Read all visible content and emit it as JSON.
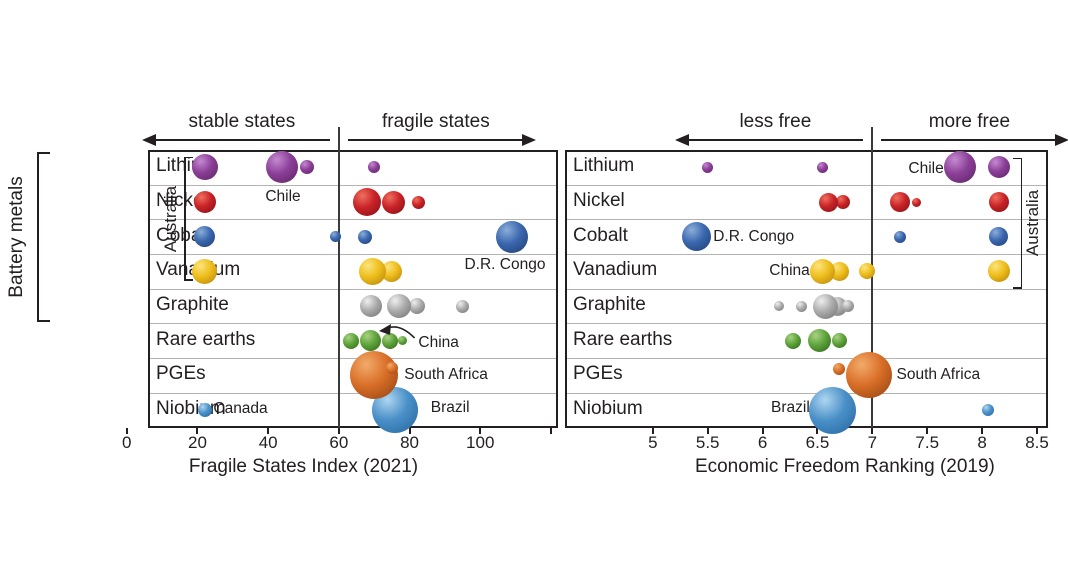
{
  "figure": {
    "group_label": "Battery metals",
    "categories": [
      "Lithium",
      "Nickel",
      "Cobalt",
      "Vanadium",
      "Graphite",
      "Rare earths",
      "PGEs",
      "Niobium"
    ]
  },
  "colors": {
    "purple": "#8b3f97",
    "red": "#c92227",
    "blue": "#3a67ae",
    "yellow": "#eebd1b",
    "gray": "#ababab",
    "green": "#5da33a",
    "orange": "#d96f28",
    "lightblue": "#4a90c8",
    "grid": "#b3b3b3",
    "ink": "#231f20"
  },
  "chart_data": [
    {
      "type": "scatter",
      "variant": "bubble",
      "xlabel": "Fragile States Index (2021)",
      "xlim": [
        6,
        122
      ],
      "grid": "horizontal-rows",
      "x_ticks": [
        {
          "v": 0,
          "label": "0"
        },
        {
          "v": 20,
          "label": "20"
        },
        {
          "v": 40,
          "label": "40"
        },
        {
          "v": 60,
          "label": "60"
        },
        {
          "v": 80,
          "label": "80"
        },
        {
          "v": 100,
          "label": "100"
        },
        {
          "v": 120,
          "label": ""
        }
      ],
      "divider": {
        "x": 60,
        "left_label": "stable states",
        "right_label": "fragile states"
      },
      "categories": [
        "Lithium",
        "Nickel",
        "Cobalt",
        "Vanadium",
        "Graphite",
        "Rare earths",
        "PGEs",
        "Niobium"
      ],
      "series": [
        {
          "name": "Lithium",
          "color": "purple",
          "points": [
            {
              "x": 22,
              "r": 13
            },
            {
              "x": 44,
              "r": 16
            },
            {
              "x": 51,
              "r": 7
            },
            {
              "x": 70,
              "r": 6
            }
          ]
        },
        {
          "name": "Nickel",
          "color": "red",
          "points": [
            {
              "x": 22,
              "r": 11
            },
            {
              "x": 68,
              "r": 14
            },
            {
              "x": 75.5,
              "r": 11.5
            },
            {
              "x": 82.5,
              "r": 6.5
            }
          ]
        },
        {
          "name": "Cobalt",
          "color": "blue",
          "points": [
            {
              "x": 22,
              "r": 10.5
            },
            {
              "x": 59,
              "r": 5.5
            },
            {
              "x": 67.5,
              "r": 7
            },
            {
              "x": 109,
              "r": 16
            }
          ]
        },
        {
          "name": "Vanadium",
          "color": "yellow",
          "points": [
            {
              "x": 22,
              "r": 12.5
            },
            {
              "x": 75,
              "r": 10.5
            },
            {
              "x": 69.5,
              "r": 13.5
            }
          ]
        },
        {
          "name": "Graphite",
          "color": "gray",
          "points": [
            {
              "x": 69,
              "r": 11
            },
            {
              "x": 82,
              "r": 8
            },
            {
              "x": 77,
              "r": 12
            },
            {
              "x": 95,
              "r": 6.5
            }
          ]
        },
        {
          "name": "Rare earths",
          "color": "green",
          "points": [
            {
              "x": 63.5,
              "r": 8
            },
            {
              "x": 74.5,
              "r": 8
            },
            {
              "x": 78,
              "r": 4.5
            },
            {
              "x": 69,
              "r": 10.5
            }
          ]
        },
        {
          "name": "PGEs",
          "color": "orange",
          "points": [
            {
              "x": 70,
              "r": 24
            },
            {
              "x": 75,
              "r": 6,
              "dy": -7
            }
          ]
        },
        {
          "name": "Niobium",
          "color": "lightblue",
          "points": [
            {
              "x": 22,
              "r": 7
            },
            {
              "x": 76,
              "r": 23
            }
          ]
        }
      ],
      "annotations": [
        {
          "text": "Chile",
          "x": 44.2,
          "row": 0.86,
          "align": "center"
        },
        {
          "text": "D.R. Congo",
          "x": 107,
          "row": 2.81,
          "align": "center"
        },
        {
          "text": "China",
          "x": 82.5,
          "row": 5.05,
          "align": "left",
          "arrow": {
            "from_x": 81.5,
            "from_row": 4.92,
            "to_x": 72,
            "to_row": 4.69
          }
        },
        {
          "text": "South Africa",
          "x": 78.5,
          "row": 6,
          "align": "left"
        },
        {
          "text": "Canada",
          "x": 24.5,
          "row": 6.97,
          "align": "left"
        },
        {
          "text": "Brazil",
          "x": 86,
          "row": 6.94,
          "align": "left"
        }
      ],
      "bracket": {
        "label": "Australia",
        "x": 16.3,
        "row_top": 0.2,
        "row_bot": 3.76,
        "tick_dir": 1,
        "label_x": 12.5
      }
    },
    {
      "type": "scatter",
      "variant": "bubble",
      "xlabel": "Economic Freedom Ranking (2019)",
      "xlim": [
        4.2,
        8.6
      ],
      "grid": "horizontal-rows",
      "x_ticks": [
        {
          "v": 5,
          "label": "5"
        },
        {
          "v": 5.5,
          "label": "5.5"
        },
        {
          "v": 6,
          "label": "6"
        },
        {
          "v": 6.5,
          "label": "6.5"
        },
        {
          "v": 7,
          "label": "7"
        },
        {
          "v": 7.5,
          "label": "7.5"
        },
        {
          "v": 8,
          "label": "8"
        },
        {
          "v": 8.5,
          "label": "8.5"
        }
      ],
      "divider": {
        "x": 7,
        "left_label": "less free",
        "right_label": "more free"
      },
      "categories": [
        "Lithium",
        "Nickel",
        "Cobalt",
        "Vanadium",
        "Graphite",
        "Rare earths",
        "PGEs",
        "Niobium"
      ],
      "series": [
        {
          "name": "Lithium",
          "color": "purple",
          "points": [
            {
              "x": 5.5,
              "r": 5.5
            },
            {
              "x": 6.55,
              "r": 5.5
            },
            {
              "x": 7.8,
              "r": 16
            },
            {
              "x": 8.15,
              "r": 11
            }
          ]
        },
        {
          "name": "Nickel",
          "color": "red",
          "points": [
            {
              "x": 6.73,
              "r": 7
            },
            {
              "x": 6.6,
              "r": 9.5
            },
            {
              "x": 7.4,
              "r": 4.5
            },
            {
              "x": 7.25,
              "r": 10
            },
            {
              "x": 8.15,
              "r": 10
            }
          ]
        },
        {
          "name": "Cobalt",
          "color": "blue",
          "points": [
            {
              "x": 5.4,
              "r": 14.5
            },
            {
              "x": 7.25,
              "r": 6
            },
            {
              "x": 8.15,
              "r": 9.5
            }
          ]
        },
        {
          "name": "Vanadium",
          "color": "yellow",
          "points": [
            {
              "x": 6.7,
              "r": 9.5
            },
            {
              "x": 6.95,
              "r": 8
            },
            {
              "x": 6.55,
              "r": 12.5
            },
            {
              "x": 8.15,
              "r": 11
            }
          ]
        },
        {
          "name": "Graphite",
          "color": "gray",
          "points": [
            {
              "x": 6.15,
              "r": 5
            },
            {
              "x": 6.35,
              "r": 5.5
            },
            {
              "x": 6.68,
              "r": 9.5
            },
            {
              "x": 6.78,
              "r": 6
            },
            {
              "x": 6.57,
              "r": 12.5
            }
          ]
        },
        {
          "name": "Rare earths",
          "color": "green",
          "points": [
            {
              "x": 6.28,
              "r": 8
            },
            {
              "x": 6.7,
              "r": 7.5
            },
            {
              "x": 6.52,
              "r": 11.5
            }
          ]
        },
        {
          "name": "PGEs",
          "color": "orange",
          "points": [
            {
              "x": 6.7,
              "r": 6,
              "dy": -6
            },
            {
              "x": 6.97,
              "r": 23
            }
          ]
        },
        {
          "name": "Niobium",
          "color": "lightblue",
          "points": [
            {
              "x": 6.64,
              "r": 23.5
            },
            {
              "x": 8.05,
              "r": 6
            }
          ]
        }
      ],
      "annotations": [
        {
          "text": "Chile",
          "x": 7.65,
          "row": 0.05,
          "align": "right"
        },
        {
          "text": "D.R. Congo",
          "x": 5.55,
          "row": 2,
          "align": "left"
        },
        {
          "text": "China",
          "x": 6.43,
          "row": 3,
          "align": "right"
        },
        {
          "text": "South Africa",
          "x": 7.22,
          "row": 6,
          "align": "left"
        },
        {
          "text": "Brazil",
          "x": 6.43,
          "row": 6.94,
          "align": "right"
        }
      ],
      "bracket": {
        "label": "Australia",
        "x": 8.35,
        "row_top": 0.23,
        "row_bot": 3.98,
        "tick_dir": -1,
        "label_x": 8.46
      }
    }
  ]
}
